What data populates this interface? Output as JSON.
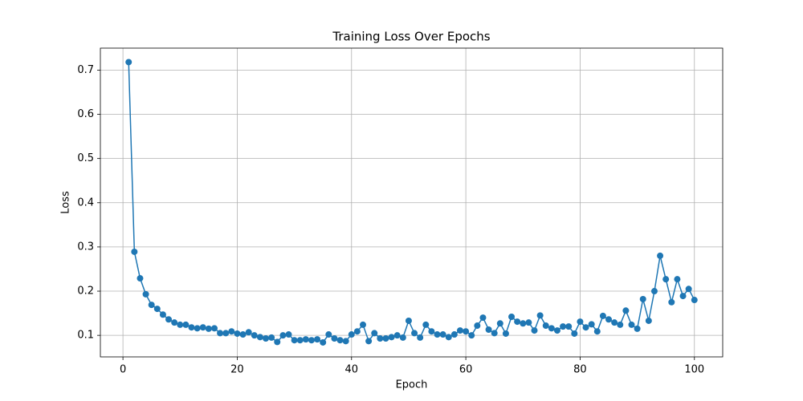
{
  "chart_data": {
    "type": "line",
    "title": "Training Loss Over Epochs",
    "x_label": "Epoch",
    "y_label": "Loss",
    "x": [
      1,
      2,
      3,
      4,
      5,
      6,
      7,
      8,
      9,
      10,
      11,
      12,
      13,
      14,
      15,
      16,
      17,
      18,
      19,
      20,
      21,
      22,
      23,
      24,
      25,
      26,
      27,
      28,
      29,
      30,
      31,
      32,
      33,
      34,
      35,
      36,
      37,
      38,
      39,
      40,
      41,
      42,
      43,
      44,
      45,
      46,
      47,
      48,
      49,
      50,
      51,
      52,
      53,
      54,
      55,
      56,
      57,
      58,
      59,
      60,
      61,
      62,
      63,
      64,
      65,
      66,
      67,
      68,
      69,
      70,
      71,
      72,
      73,
      74,
      75,
      76,
      77,
      78,
      79,
      80,
      81,
      82,
      83,
      84,
      85,
      86,
      87,
      88,
      89,
      90,
      91,
      92,
      93,
      94,
      95,
      96,
      97,
      98,
      99,
      100
    ],
    "values": [
      0.718,
      0.289,
      0.229,
      0.193,
      0.169,
      0.16,
      0.147,
      0.136,
      0.129,
      0.124,
      0.124,
      0.118,
      0.116,
      0.118,
      0.115,
      0.116,
      0.105,
      0.105,
      0.109,
      0.104,
      0.102,
      0.107,
      0.1,
      0.096,
      0.093,
      0.095,
      0.085,
      0.1,
      0.102,
      0.089,
      0.089,
      0.091,
      0.089,
      0.091,
      0.084,
      0.102,
      0.093,
      0.089,
      0.087,
      0.102,
      0.109,
      0.124,
      0.087,
      0.105,
      0.093,
      0.093,
      0.096,
      0.1,
      0.095,
      0.133,
      0.105,
      0.095,
      0.124,
      0.109,
      0.102,
      0.102,
      0.096,
      0.102,
      0.111,
      0.109,
      0.1,
      0.122,
      0.14,
      0.113,
      0.105,
      0.127,
      0.104,
      0.142,
      0.131,
      0.127,
      0.129,
      0.111,
      0.145,
      0.122,
      0.116,
      0.111,
      0.12,
      0.12,
      0.104,
      0.131,
      0.118,
      0.125,
      0.109,
      0.144,
      0.136,
      0.129,
      0.124,
      0.156,
      0.124,
      0.115,
      0.182,
      0.133,
      0.2,
      0.28,
      0.227,
      0.175,
      0.227,
      0.189,
      0.205,
      0.18
    ],
    "color": "#1f77b4",
    "xlim": [
      -3.95,
      104.95
    ],
    "xticks": [
      0,
      20,
      40,
      60,
      80,
      100
    ],
    "ylim": [
      0.0513,
      0.7497
    ],
    "yticks": [
      0.1,
      0.2,
      0.3,
      0.4,
      0.5,
      0.6,
      0.7
    ],
    "grid": true
  }
}
